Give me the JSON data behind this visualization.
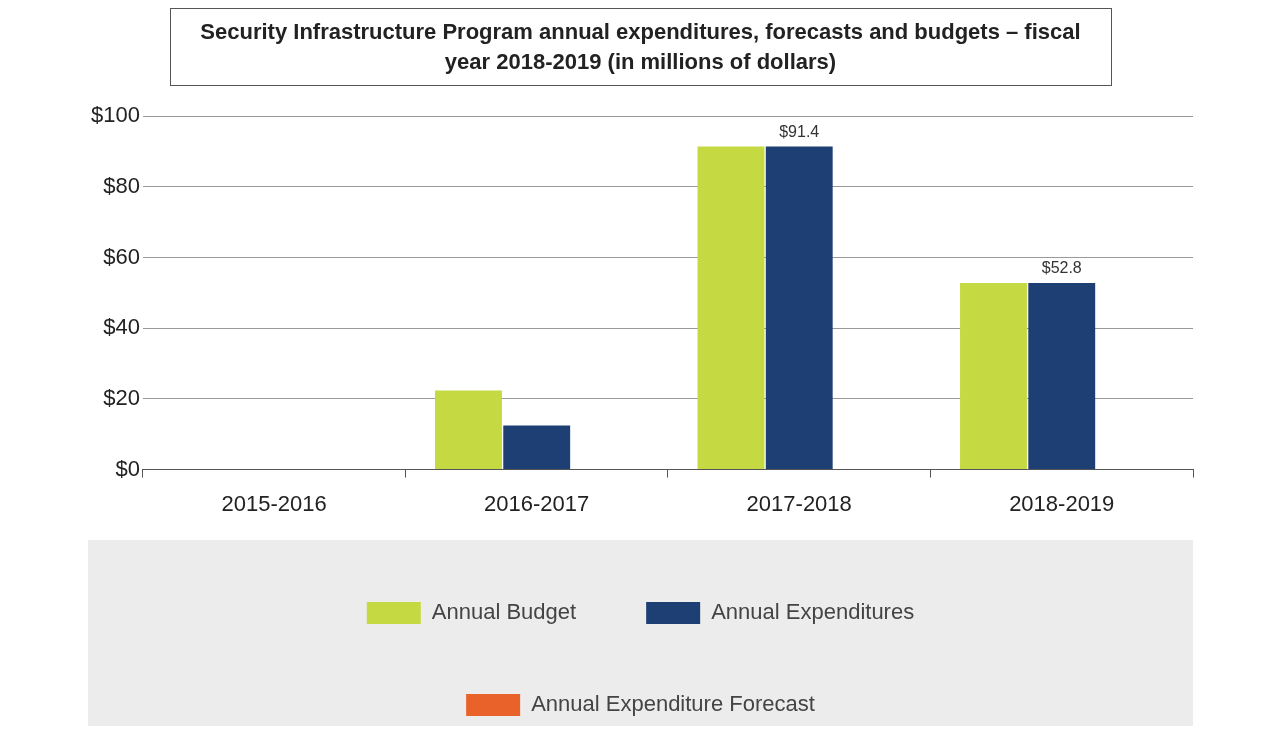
{
  "chart_data": {
    "type": "bar",
    "title": "Security Infrastructure Program annual expenditures, forecasts and budgets – fiscal year 2018-2019 (in millions of dollars)",
    "categories": [
      "2015-2016",
      "2016-2017",
      "2017-2018",
      "2018-2019"
    ],
    "series": [
      {
        "name": "Annual Budget",
        "color": "#c5d942",
        "values": [
          null,
          22.4,
          91.4,
          52.8
        ]
      },
      {
        "name": "Annual Expenditures",
        "color": "#1d3f73",
        "values": [
          null,
          12.5,
          91.4,
          52.8
        ],
        "value_labels": [
          null,
          null,
          "$91.4",
          "$52.8"
        ]
      },
      {
        "name": "Annual Expenditure Forecast",
        "color": "#e8622a",
        "values": [
          null,
          null,
          null,
          null
        ]
      }
    ],
    "ylim": [
      0,
      100
    ],
    "yticks": [
      {
        "value": 0,
        "label": "$0"
      },
      {
        "value": 20,
        "label": "$20"
      },
      {
        "value": 40,
        "label": "$40"
      },
      {
        "value": 60,
        "label": "$60"
      },
      {
        "value": 80,
        "label": "$80"
      },
      {
        "value": 100,
        "label": "$100"
      }
    ],
    "grid": "y",
    "legend": "bottom"
  }
}
